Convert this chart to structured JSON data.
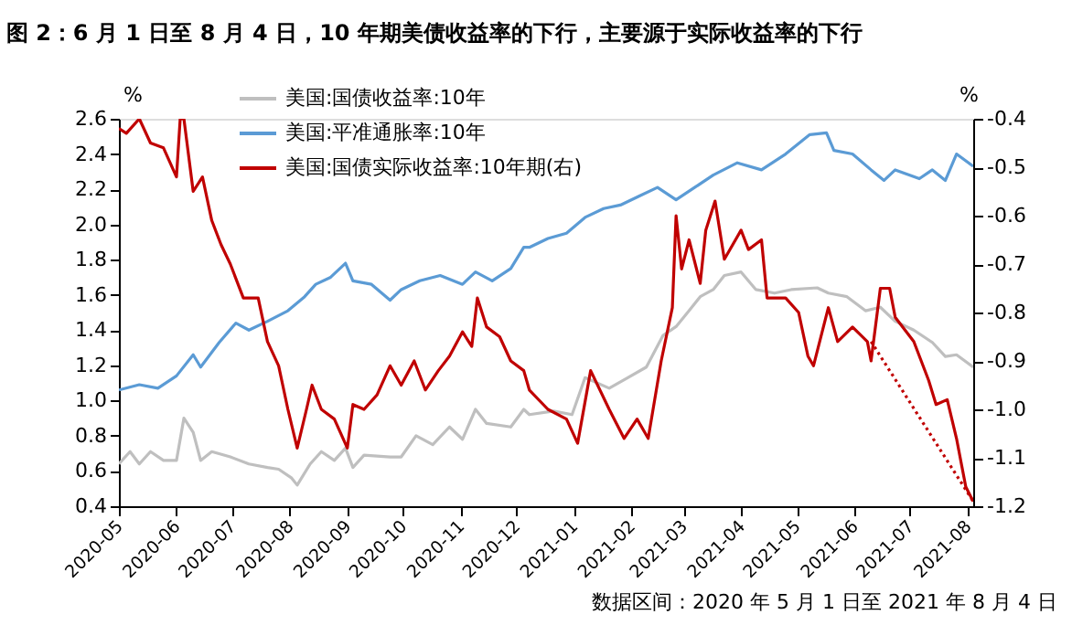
{
  "chart_data": {
    "type": "line",
    "title": "图 2：6 月 1 日至 8 月 4 日，10 年期美债收益率的下行，主要源于实际收益率的下行",
    "ylabel": "%",
    "y2label": "%",
    "xlim": [
      "2020-05-01",
      "2021-08-04"
    ],
    "xticks": [
      "2020-05",
      "2020-06",
      "2020-07",
      "2020-08",
      "2020-09",
      "2020-10",
      "2020-11",
      "2020-12",
      "2021-01",
      "2021-02",
      "2021-03",
      "2021-04",
      "2021-05",
      "2021-06",
      "2021-07",
      "2021-08"
    ],
    "ylim": [
      0.4,
      2.6
    ],
    "yticks": [
      0.4,
      0.6,
      0.8,
      {
        "value": 1,
        "label": "1.0"
      },
      1.2,
      1.4,
      1.6,
      1.8,
      {
        "value": 2,
        "label": "2.0"
      },
      2.2,
      2.4,
      2.6
    ],
    "y2lim": [
      -1.2,
      -0.4
    ],
    "y2ticks": [
      -1.2,
      -1.1,
      {
        "value": -1,
        "label": "-1.0"
      },
      -0.9,
      -0.8,
      -0.7,
      -0.6,
      -0.5,
      -0.4
    ],
    "legend": "top",
    "grid": false,
    "line_style": "solid",
    "annotations": [
      "数据区间：2020 年 5 月 1 日至 2021 年 8 月 4 日"
    ],
    "series": [
      {
        "name": "美国:国债收益率:10年",
        "color": "#bfbfbf",
        "x": [
          "2020-05-01",
          "2020-05-07",
          "2020-05-12",
          "2020-05-18",
          "2020-05-25",
          "2020-06-01",
          "2020-06-05",
          "2020-06-10",
          "2020-06-14",
          "2020-06-20",
          "2020-06-30",
          "2020-07-10",
          "2020-07-20",
          "2020-07-26",
          "2020-08-02",
          "2020-08-05",
          "2020-08-12",
          "2020-08-18",
          "2020-08-25",
          "2020-08-31",
          "2020-09-04",
          "2020-09-10",
          "2020-09-24",
          "2020-09-30",
          "2020-10-08",
          "2020-10-17",
          "2020-10-26",
          "2020-11-02",
          "2020-11-09",
          "2020-11-15",
          "2020-11-28",
          "2020-12-05",
          "2020-12-08",
          "2020-12-21",
          "2020-12-31",
          "2021-01-07",
          "2021-01-20",
          "2021-01-30",
          "2021-02-09",
          "2021-02-18",
          "2021-02-25",
          "2021-03-04",
          "2021-03-10",
          "2021-03-17",
          "2021-03-23",
          "2021-04-01",
          "2021-04-09",
          "2021-04-19",
          "2021-04-28",
          "2021-05-12",
          "2021-05-18",
          "2021-05-28",
          "2021-06-07",
          "2021-06-15",
          "2021-06-23",
          "2021-07-03",
          "2021-07-13",
          "2021-07-20",
          "2021-07-26",
          "2021-08-04"
        ],
        "values": [
          0.64,
          0.71,
          0.64,
          0.71,
          0.66,
          0.66,
          0.9,
          0.82,
          0.66,
          0.71,
          0.68,
          0.64,
          0.62,
          0.61,
          0.56,
          0.52,
          0.64,
          0.71,
          0.66,
          0.73,
          0.62,
          0.69,
          0.68,
          0.68,
          0.8,
          0.75,
          0.85,
          0.78,
          0.95,
          0.87,
          0.85,
          0.95,
          0.92,
          0.94,
          0.92,
          1.13,
          1.07,
          1.13,
          1.19,
          1.37,
          1.42,
          1.51,
          1.59,
          1.63,
          1.71,
          1.73,
          1.63,
          1.61,
          1.63,
          1.64,
          1.61,
          1.59,
          1.51,
          1.53,
          1.45,
          1.4,
          1.33,
          1.25,
          1.26,
          1.19
        ]
      },
      {
        "name": "美国:平准通胀率:10年",
        "color": "#5b9bd5",
        "x": [
          "2020-05-01",
          "2020-05-12",
          "2020-05-22",
          "2020-06-01",
          "2020-06-10",
          "2020-06-14",
          "2020-06-24",
          "2020-07-03",
          "2020-07-10",
          "2020-07-20",
          "2020-07-31",
          "2020-08-09",
          "2020-08-15",
          "2020-08-23",
          "2020-08-31",
          "2020-09-04",
          "2020-09-14",
          "2020-09-24",
          "2020-09-30",
          "2020-10-10",
          "2020-10-21",
          "2020-11-02",
          "2020-11-09",
          "2020-11-18",
          "2020-11-28",
          "2020-12-05",
          "2020-12-08",
          "2020-12-18",
          "2020-12-28",
          "2021-01-07",
          "2021-01-17",
          "2021-01-26",
          "2021-02-05",
          "2021-02-15",
          "2021-02-25",
          "2021-03-07",
          "2021-03-17",
          "2021-03-30",
          "2021-04-12",
          "2021-04-25",
          "2021-05-08",
          "2021-05-17",
          "2021-05-21",
          "2021-05-31",
          "2021-06-10",
          "2021-06-17",
          "2021-06-23",
          "2021-07-06",
          "2021-07-13",
          "2021-07-20",
          "2021-07-26",
          "2021-08-04"
        ],
        "values": [
          1.06,
          1.09,
          1.07,
          1.14,
          1.26,
          1.19,
          1.33,
          1.44,
          1.4,
          1.45,
          1.51,
          1.59,
          1.66,
          1.7,
          1.78,
          1.68,
          1.66,
          1.57,
          1.63,
          1.68,
          1.71,
          1.66,
          1.73,
          1.68,
          1.75,
          1.87,
          1.87,
          1.92,
          1.95,
          2.04,
          2.09,
          2.11,
          2.16,
          2.21,
          2.14,
          2.21,
          2.28,
          2.35,
          2.31,
          2.4,
          2.51,
          2.52,
          2.42,
          2.4,
          2.31,
          2.25,
          2.31,
          2.26,
          2.31,
          2.25,
          2.4,
          2.33
        ]
      },
      {
        "name": "美国:国债实际收益率:10年期(右)",
        "color": "#c00000",
        "axis": "y2",
        "x": [
          "2020-05-01",
          "2020-05-05",
          "2020-05-12",
          "2020-05-18",
          "2020-05-25",
          "2020-06-01",
          "2020-06-03",
          "2020-06-05",
          "2020-06-10",
          "2020-06-15",
          "2020-06-20",
          "2020-06-25",
          "2020-06-30",
          "2020-07-07",
          "2020-07-15",
          "2020-07-20",
          "2020-07-26",
          "2020-07-31",
          "2020-08-05",
          "2020-08-10",
          "2020-08-13",
          "2020-08-18",
          "2020-08-25",
          "2020-09-01",
          "2020-09-04",
          "2020-09-10",
          "2020-09-17",
          "2020-09-24",
          "2020-09-30",
          "2020-10-07",
          "2020-10-13",
          "2020-10-20",
          "2020-10-26",
          "2020-11-02",
          "2020-11-07",
          "2020-11-10",
          "2020-11-15",
          "2020-11-22",
          "2020-11-28",
          "2020-12-05",
          "2020-12-08",
          "2020-12-18",
          "2020-12-28",
          "2021-01-03",
          "2021-01-10",
          "2021-01-20",
          "2021-01-28",
          "2021-02-04",
          "2021-02-10",
          "2021-02-17",
          "2021-02-23",
          "2021-02-25",
          "2021-02-28",
          "2021-03-04",
          "2021-03-10",
          "2021-03-13",
          "2021-03-18",
          "2021-03-23",
          "2021-04-01",
          "2021-04-05",
          "2021-04-12",
          "2021-04-15",
          "2021-04-25",
          "2021-05-02",
          "2021-05-07",
          "2021-05-10",
          "2021-05-18",
          "2021-05-23",
          "2021-05-31",
          "2021-06-08",
          "2021-06-10",
          "2021-06-15",
          "2021-06-20",
          "2021-06-23",
          "2021-07-03",
          "2021-07-11",
          "2021-07-15",
          "2021-07-21",
          "2021-07-26",
          "2021-07-31",
          "2021-08-04"
        ],
        "values": [
          -0.42,
          -0.43,
          -0.4,
          -0.45,
          -0.46,
          -0.52,
          -0.4,
          -0.4,
          -0.55,
          -0.52,
          -0.61,
          -0.66,
          -0.7,
          -0.77,
          -0.77,
          -0.86,
          -0.91,
          -1.0,
          -1.08,
          -1.0,
          -0.95,
          -1.0,
          -1.02,
          -1.08,
          -0.99,
          -1.0,
          -0.97,
          -0.91,
          -0.95,
          -0.9,
          -0.96,
          -0.92,
          -0.89,
          -0.84,
          -0.87,
          -0.77,
          -0.83,
          -0.85,
          -0.9,
          -0.92,
          -0.96,
          -1.0,
          -1.02,
          -1.07,
          -0.92,
          -1.0,
          -1.06,
          -1.02,
          -1.06,
          -0.9,
          -0.79,
          -0.6,
          -0.71,
          -0.65,
          -0.74,
          -0.63,
          -0.57,
          -0.69,
          -0.63,
          -0.67,
          -0.65,
          -0.77,
          -0.77,
          -0.8,
          -0.89,
          -0.91,
          -0.79,
          -0.86,
          -0.83,
          -0.86,
          -0.9,
          -0.75,
          -0.75,
          -0.81,
          -0.86,
          -0.94,
          -0.99,
          -0.98,
          -1.06,
          -1.16,
          -1.19
        ]
      },
      {
        "color": "#c00000",
        "axis": "y2",
        "line_style": "dotted",
        "x": [
          "2021-06-10",
          "2021-08-04"
        ],
        "values": [
          -0.86,
          -1.19
        ]
      }
    ]
  }
}
